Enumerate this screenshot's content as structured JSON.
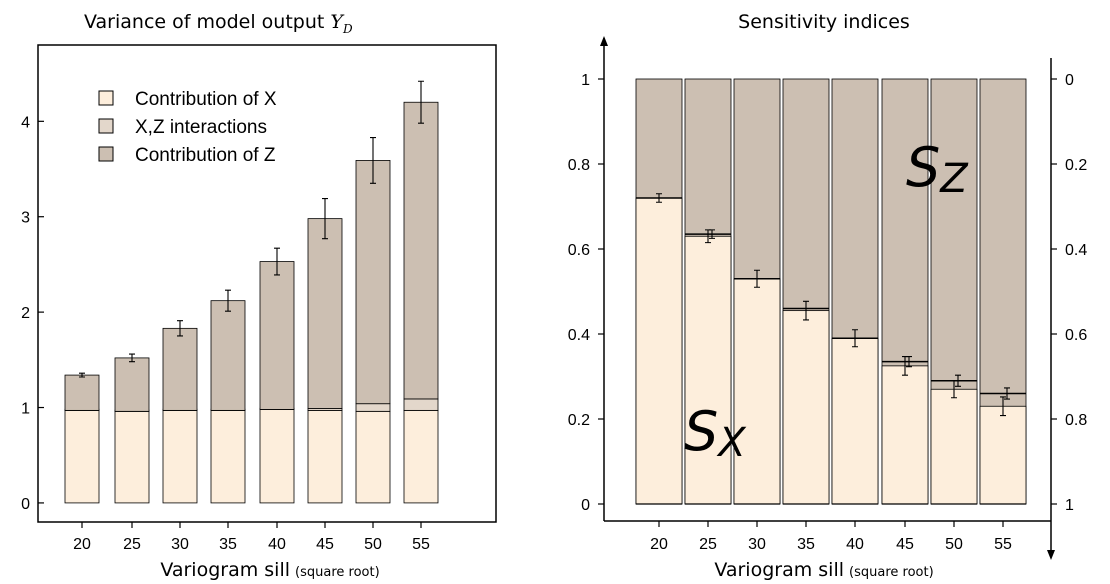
{
  "chart_data": [
    {
      "type": "bar",
      "stacked": true,
      "title": "Variance of model output ",
      "title_math": "Y",
      "title_math_sub": "D",
      "xlabel": "Variogram sill",
      "xlabel_note": "(square root)",
      "categories": [
        "20",
        "25",
        "30",
        "35",
        "40",
        "45",
        "50",
        "55"
      ],
      "series": [
        {
          "name": "Contribution of X",
          "color": "#fdeedc",
          "values": [
            0.97,
            0.96,
            0.97,
            0.97,
            0.98,
            0.97,
            0.96,
            0.97
          ]
        },
        {
          "name": "X,Z interactions",
          "color": "#e3d7cb",
          "values": [
            0.0,
            0.0,
            0.0,
            0.0,
            0.0,
            0.02,
            0.08,
            0.12
          ]
        },
        {
          "name": "Contribution of Z",
          "color": "#ccbfb2",
          "values": [
            0.37,
            0.56,
            0.86,
            1.15,
            1.55,
            1.99,
            2.55,
            3.11
          ]
        }
      ],
      "totals": [
        1.34,
        1.52,
        1.83,
        2.12,
        2.53,
        2.98,
        3.59,
        4.2
      ],
      "error": [
        0.02,
        0.04,
        0.08,
        0.11,
        0.14,
        0.21,
        0.24,
        0.22
      ],
      "ylim": [
        -0.2,
        4.8
      ],
      "yticks": [
        "0",
        "1",
        "2",
        "3",
        "4"
      ],
      "legend_position": "top-left"
    },
    {
      "type": "bar",
      "stacked": true,
      "title": "Sensitivity indices",
      "xlabel": "Variogram sill",
      "xlabel_note": "(square root)",
      "categories": [
        "20",
        "25",
        "30",
        "35",
        "40",
        "45",
        "50",
        "55"
      ],
      "series": [
        {
          "name": "Sx",
          "color": "#fdeedc",
          "values": [
            0.72,
            0.63,
            0.53,
            0.455,
            0.39,
            0.325,
            0.27,
            0.23
          ]
        },
        {
          "name": "Sz",
          "color": "#ccbfb2",
          "values": [
            0.28,
            0.365,
            0.47,
            0.54,
            0.61,
            0.665,
            0.71,
            0.74
          ]
        }
      ],
      "sx_error": [
        0.01,
        0.015,
        0.02,
        0.022,
        0.02,
        0.022,
        0.02,
        0.022
      ],
      "sz_error": [
        0.0,
        0.01,
        0.0,
        0.0,
        0.0,
        0.012,
        0.013,
        0.013
      ],
      "ylim": [
        -0.04,
        1.08
      ],
      "yticks_left": [
        "0",
        "0.2",
        "0.4",
        "0.6",
        "0.8",
        "1"
      ],
      "yticks_right": [
        "1",
        "0.8",
        "0.6",
        "0.4",
        "0.2",
        "0"
      ],
      "label_sx": "S",
      "label_sx_sub": "X",
      "label_sz": "S",
      "label_sz_sub": "Z"
    }
  ]
}
